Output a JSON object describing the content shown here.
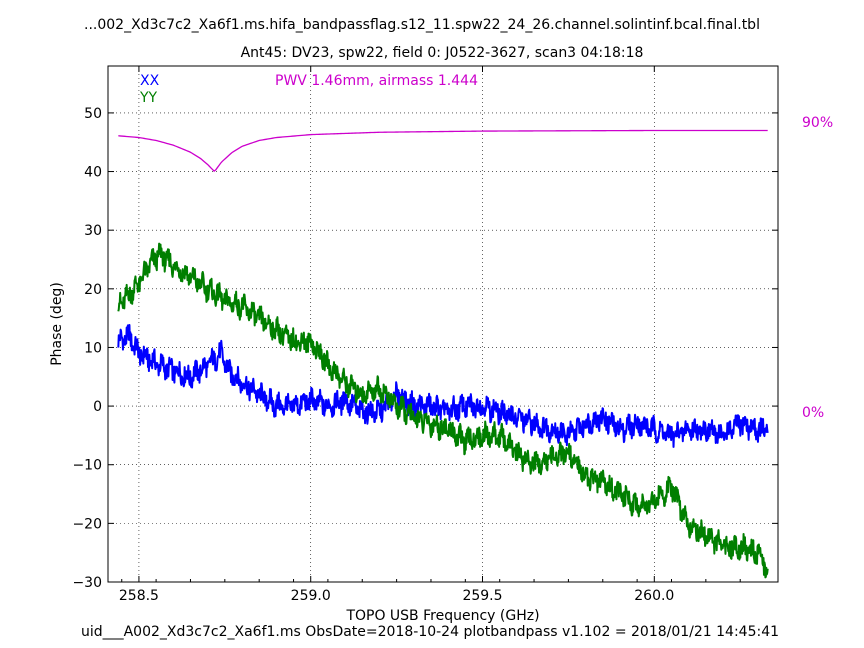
{
  "chart_data": {
    "type": "line",
    "title": "...002_Xd3c7c2_Xa6f1.ms.hifa_bandpassflag.s12_11.spw22_24_26.channel.solintinf.bcal.final.tbl",
    "subtitle": "Ant45: DV23,  spw22,  field 0: J0522-3627,  scan3  04:18:18",
    "xlabel": "TOPO USB Frequency (GHz)",
    "ylabel": "Phase (deg)",
    "footer": "uid___A002_Xd3c7c2_Xa6f1.ms  ObsDate=2018-10-24   plotbandpass v1.102 = 2018/01/21 14:45:41",
    "xlim": [
      258.41,
      260.36
    ],
    "ylim": [
      -30,
      58
    ],
    "xticks": [
      258.5,
      259.0,
      259.5,
      260.0
    ],
    "xtick_labels": [
      "258.5",
      "259.0",
      "259.5",
      "260.0"
    ],
    "yticks": [
      -30,
      -20,
      -10,
      0,
      10,
      20,
      30,
      40,
      50
    ],
    "ytick_labels": [
      "−30",
      "−20",
      "−10",
      "0",
      "10",
      "20",
      "30",
      "40",
      "50"
    ],
    "grid": true,
    "legend": {
      "placement": "top-left",
      "entries": [
        "XX",
        "YY"
      ]
    },
    "series": [
      {
        "name": "XX",
        "color": "#0000ff",
        "x": [
          258.44,
          258.47,
          258.5,
          258.53,
          258.56,
          258.6,
          258.65,
          258.7,
          258.74,
          258.76,
          258.8,
          258.85,
          258.9,
          258.95,
          259.0,
          259.05,
          259.1,
          259.15,
          259.2,
          259.25,
          259.3,
          259.35,
          259.4,
          259.45,
          259.5,
          259.55,
          259.6,
          259.65,
          259.7,
          259.75,
          259.8,
          259.85,
          259.9,
          259.95,
          260.0,
          260.05,
          260.1,
          260.15,
          260.2,
          260.25,
          260.3,
          260.33
        ],
        "y": [
          11,
          12,
          9,
          8,
          7,
          6,
          5,
          7,
          9,
          6,
          4,
          2,
          0,
          0,
          1,
          0,
          1,
          -1,
          -1,
          2,
          0,
          0,
          -1,
          0,
          0,
          -1,
          -2,
          -3,
          -4,
          -5,
          -3,
          -2,
          -4,
          -3,
          -4,
          -5,
          -4,
          -4,
          -5,
          -3,
          -4,
          -4
        ]
      },
      {
        "name": "YY",
        "color": "#007f00",
        "x": [
          258.44,
          258.47,
          258.5,
          258.53,
          258.56,
          258.6,
          258.65,
          258.7,
          258.75,
          258.8,
          258.85,
          258.9,
          258.95,
          259.0,
          259.05,
          259.1,
          259.15,
          259.2,
          259.25,
          259.3,
          259.35,
          259.4,
          259.45,
          259.5,
          259.55,
          259.6,
          259.65,
          259.7,
          259.75,
          259.8,
          259.85,
          259.9,
          259.95,
          260.0,
          260.05,
          260.1,
          260.15,
          260.2,
          260.25,
          260.3,
          260.33
        ],
        "y": [
          17,
          19,
          21,
          24,
          26,
          24,
          22,
          20,
          18,
          17,
          15,
          13,
          11,
          11,
          7,
          4,
          2,
          3,
          0,
          -2,
          -3,
          -4,
          -6,
          -5,
          -5,
          -8,
          -10,
          -9,
          -8,
          -12,
          -13,
          -15,
          -17,
          -16,
          -14,
          -20,
          -22,
          -24,
          -24,
          -25,
          -28
        ]
      }
    ],
    "atmosphere": {
      "label": "PWV 1.46mm, airmass 1.444",
      "color": "#cc00cc",
      "right_axis_labels": [
        "90%",
        "0%"
      ],
      "x": [
        258.44,
        258.5,
        258.55,
        258.6,
        258.65,
        258.68,
        258.7,
        258.72,
        258.74,
        258.77,
        258.8,
        258.85,
        258.9,
        259.0,
        259.2,
        259.5,
        260.0,
        260.33
      ],
      "y": [
        46.1,
        45.8,
        45.3,
        44.5,
        43.3,
        42.2,
        41.2,
        40.0,
        41.6,
        43.2,
        44.3,
        45.3,
        45.8,
        46.3,
        46.7,
        46.9,
        47.0,
        47.0
      ]
    }
  }
}
